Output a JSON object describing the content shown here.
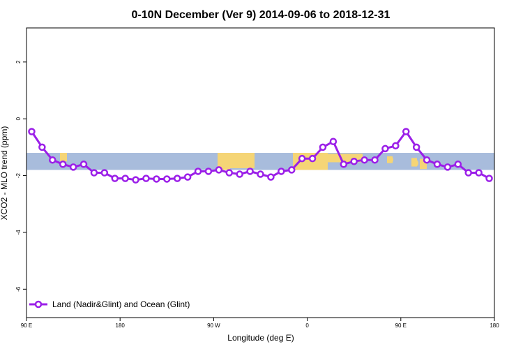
{
  "chart_data": {
    "type": "line",
    "title": "0-10N December (Ver 9)   2014-09-06 to 2018-12-31",
    "xlabel": "Longitude (deg E)",
    "ylabel": "XCO2 - MLO trend (ppm)",
    "x_ticks": [
      {
        "value": 90,
        "label": "90 E"
      },
      {
        "value": 180,
        "label": "180"
      },
      {
        "value": 270,
        "label": "90 W"
      },
      {
        "value": 360,
        "label": "0"
      },
      {
        "value": 450,
        "label": "90 E"
      },
      {
        "value": 540,
        "label": "180"
      }
    ],
    "y_ticks": [
      2,
      0,
      -2,
      -4,
      -6
    ],
    "xlim": [
      90,
      540
    ],
    "ylim": [
      -7,
      3.2
    ],
    "grid": false,
    "legend_position": "bottom-left",
    "series": [
      {
        "name": "Land (Nadir&Glint) and Ocean (Glint)",
        "color": "#9b1fe8",
        "x": [
          95,
          105,
          115,
          125,
          135,
          145,
          155,
          165,
          175,
          185,
          195,
          205,
          215,
          225,
          235,
          245,
          255,
          265,
          275,
          285,
          295,
          305,
          315,
          325,
          335,
          345,
          355,
          365,
          375,
          385,
          395,
          405,
          415,
          425,
          435,
          445,
          455,
          465,
          475,
          485,
          495,
          505,
          515,
          525,
          535
        ],
        "y": [
          -0.45,
          -1.0,
          -1.45,
          -1.6,
          -1.7,
          -1.6,
          -1.9,
          -1.9,
          -2.1,
          -2.1,
          -2.15,
          -2.1,
          -2.12,
          -2.12,
          -2.1,
          -2.05,
          -1.85,
          -1.85,
          -1.8,
          -1.9,
          -1.95,
          -1.85,
          -1.95,
          -2.05,
          -1.85,
          -1.8,
          -1.4,
          -1.4,
          -1.0,
          -0.8,
          -1.6,
          -1.5,
          -1.45,
          -1.45,
          -1.05,
          -0.95,
          -0.45,
          -1.0,
          -1.45,
          -1.6,
          -1.7,
          -1.6,
          -1.9,
          -1.9,
          -2.1
        ]
      }
    ]
  },
  "legend": {
    "label": "Land (Nadir&Glint) and Ocean (Glint)"
  },
  "background_map": {
    "ocean_color": "#a8bcdc",
    "land_color": "#f5d576",
    "band_y_range": [
      -1.2,
      -1.8
    ]
  }
}
